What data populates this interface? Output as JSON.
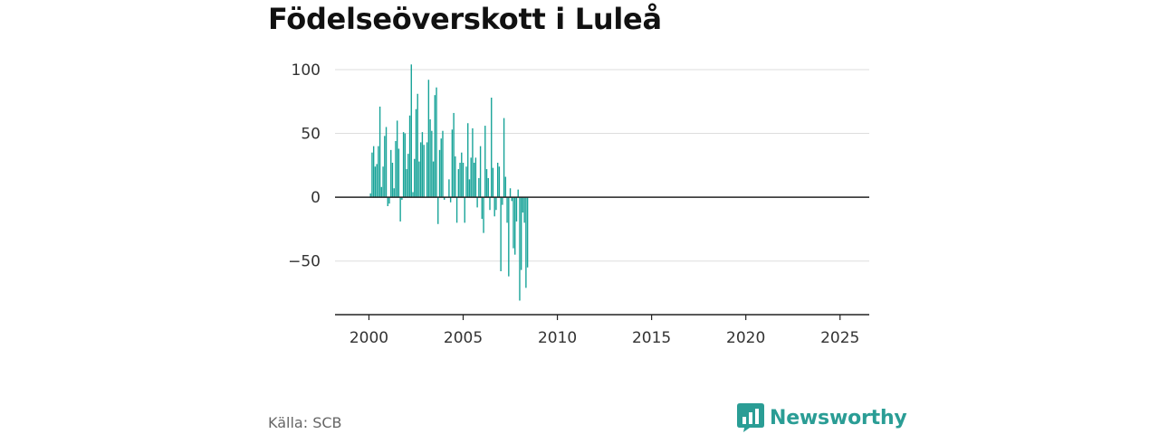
{
  "title": "Födelseöverskott i Luleå",
  "source": "Källa: SCB",
  "brand": {
    "name": "Newsworthy",
    "icon": "newsworthy-logo-icon",
    "color": "#2a9d95"
  },
  "chart_data": {
    "type": "bar",
    "title": "Födelseöverskott i Luleå",
    "xlabel": "",
    "ylabel": "",
    "bar_color": "#17a398",
    "ylim": [
      -92,
      112
    ],
    "xlim": [
      1998.2,
      2026.55
    ],
    "yticks": [
      100,
      50,
      0,
      -50
    ],
    "ytick_labels": [
      "100",
      "50",
      "0",
      "−50"
    ],
    "xticks": [
      2000,
      2005,
      2010,
      2015,
      2020,
      2025
    ],
    "xtick_labels": [
      "2000",
      "2005",
      "2010",
      "2015",
      "2020",
      "2025"
    ],
    "grid": true,
    "legend": "none",
    "bar_period": "month",
    "x_start": 2000.0,
    "values": [
      0,
      3,
      35,
      40,
      24,
      26,
      40,
      71,
      8,
      24,
      48,
      55,
      -7,
      -5,
      37,
      27,
      7,
      44,
      60,
      38,
      -19,
      -2,
      51,
      50,
      22,
      34,
      64,
      104,
      4,
      30,
      69,
      81,
      28,
      43,
      51,
      41,
      0,
      43,
      92,
      61,
      52,
      28,
      80,
      86,
      -21,
      37,
      46,
      52,
      -2,
      0,
      0,
      14,
      -4,
      53,
      66,
      32,
      -20,
      22,
      27,
      35,
      27,
      -20,
      24,
      58,
      14,
      31,
      54,
      27,
      31,
      -8,
      15,
      40,
      -17,
      -28,
      56,
      22,
      15,
      -10,
      78,
      23,
      -15,
      -10,
      27,
      24,
      -58,
      -6,
      62,
      16,
      -20,
      -62,
      7,
      -3,
      -40,
      -45,
      -19,
      6,
      -81,
      -57,
      -12,
      -20,
      -71,
      -55
    ]
  }
}
